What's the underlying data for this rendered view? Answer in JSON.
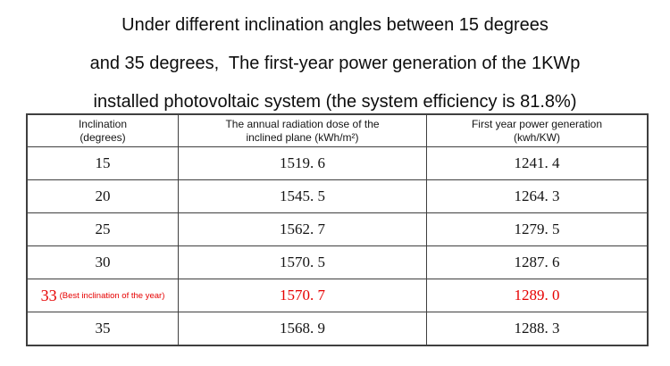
{
  "title": {
    "line1": "Under different inclination angles between 15 degrees",
    "line2": "and 35 degrees,  The first-year power generation of the 1KWp",
    "line3": "installed photovoltaic system (the system efficiency is 81.8%)"
  },
  "table": {
    "headers": [
      {
        "line1": "Inclination",
        "line2": "(degrees)"
      },
      {
        "line1": "The annual radiation dose of the",
        "line2": "inclined plane (kWh/m²)"
      },
      {
        "line1": "First year power generation",
        "line2": "(kwh/KW)"
      }
    ],
    "rows": [
      {
        "inclination": "15",
        "radiation": "1519. 6",
        "generation": "1241. 4"
      },
      {
        "inclination": "20",
        "radiation": "1545. 5",
        "generation": "1264. 3"
      },
      {
        "inclination": "25",
        "radiation": "1562. 7",
        "generation": "1279. 5"
      },
      {
        "inclination": "30",
        "radiation": "1570. 5",
        "generation": "1287. 6"
      },
      {
        "inclination": "33",
        "note": "(Best inclination of the year)",
        "radiation": "1570. 7",
        "generation": "1289. 0"
      },
      {
        "inclination": "35",
        "radiation": "1568. 9",
        "generation": "1288. 3"
      }
    ],
    "highlight_color": "#e60000",
    "text_color": "#141414",
    "border_color": "#3f3f3f",
    "background_color": "#ffffff"
  },
  "chart_data": {
    "type": "table",
    "title": "Under different inclination angles between 15 degrees and 35 degrees, The first-year power generation of the 1KWp installed photovoltaic system (the system efficiency is 81.8%)",
    "columns": [
      "Inclination (degrees)",
      "The annual radiation dose of the inclined plane (kWh/m²)",
      "First year power generation (kwh/KW)"
    ],
    "rows": [
      [
        15,
        1519.6,
        1241.4
      ],
      [
        20,
        1545.5,
        1264.3
      ],
      [
        25,
        1562.7,
        1279.5
      ],
      [
        30,
        1570.5,
        1287.6
      ],
      [
        33,
        1570.7,
        1289.0
      ],
      [
        35,
        1568.9,
        1288.3
      ]
    ],
    "highlighted_row_index": 4,
    "highlighted_row_note": "33 (Best inclination of the year)",
    "system_efficiency_percent": 81.8
  }
}
